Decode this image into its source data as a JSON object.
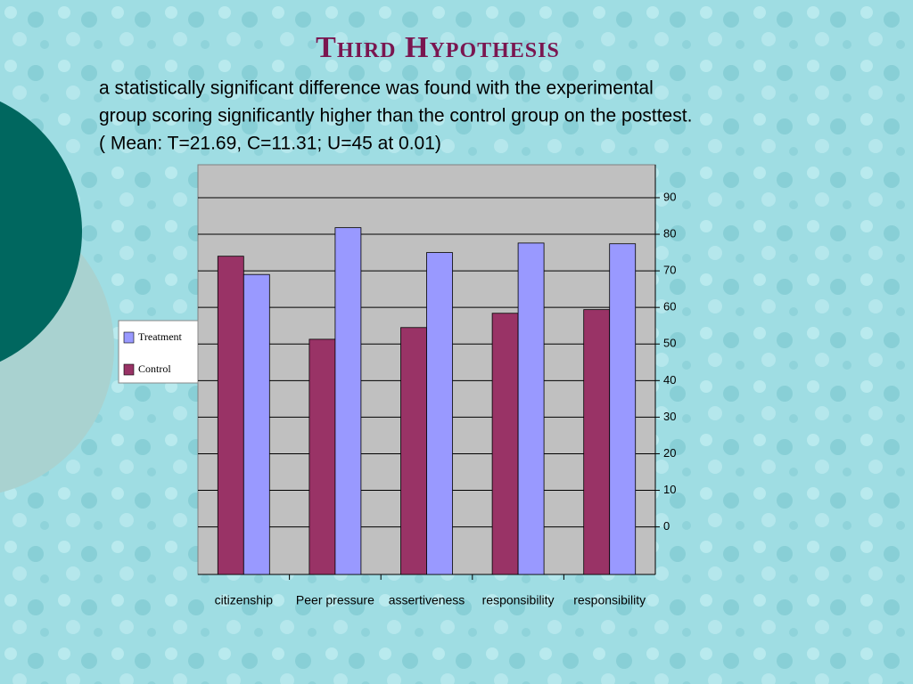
{
  "chart_data": {
    "type": "bar",
    "title": "Third Hypothesis",
    "text_lines": [
      "a statistically significant difference was found with the experimental",
      "group scoring significantly higher than the control group on the posttest.",
      "( Mean: T=21.69, C=11.31; U=45 at 0.01)"
    ],
    "categories": [
      "citizenship",
      "Peer pressure",
      "assertiveness",
      "responsibility",
      "responsibility"
    ],
    "series": [
      {
        "name": "Control",
        "color": "#993366",
        "values": [
          74,
          51.3,
          54.5,
          58.4,
          59.4
        ]
      },
      {
        "name": "Treatment",
        "color": "#9999ff",
        "values": [
          69,
          81.8,
          75,
          77.6,
          77.4
        ]
      }
    ],
    "legend_order": [
      "Treatment",
      "Control"
    ],
    "ylim": [
      -13,
      99
    ],
    "yticks": [
      0,
      10,
      20,
      30,
      40,
      50,
      60,
      70,
      80,
      90
    ],
    "grid": true,
    "axis_side": "right"
  }
}
